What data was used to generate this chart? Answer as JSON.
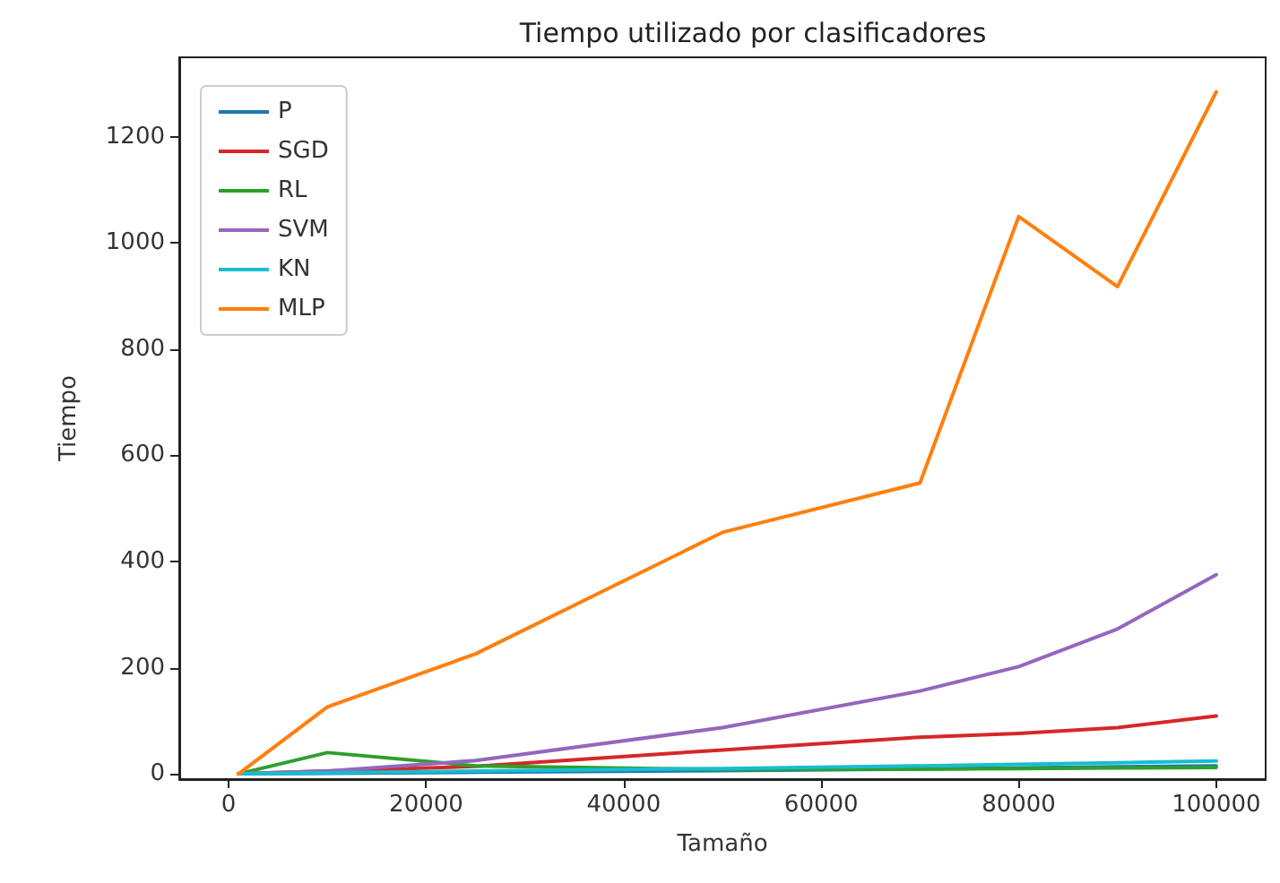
{
  "chart_data": {
    "type": "line",
    "title": "Tiempo utilizado por clasificadores",
    "xlabel": "Tamaño",
    "ylabel": "Tiempo",
    "x": [
      1000,
      10000,
      25000,
      50000,
      70000,
      80000,
      90000,
      100000
    ],
    "series": [
      {
        "name": "P",
        "color": "#1f77b4",
        "values": [
          0,
          1,
          3,
          6,
          9,
          11,
          13,
          15
        ]
      },
      {
        "name": "SGD",
        "color": "#d62728",
        "values": [
          0,
          5,
          14,
          45,
          69,
          76,
          87,
          109
        ]
      },
      {
        "name": "RL",
        "color": "#2ca02c",
        "values": [
          0,
          40,
          15,
          8,
          9,
          10,
          11,
          12
        ]
      },
      {
        "name": "SVM",
        "color": "#9467bd",
        "values": [
          0,
          5,
          25,
          87,
          156,
          202,
          273,
          375
        ]
      },
      {
        "name": "KN",
        "color": "#17becf",
        "values": [
          0,
          2,
          5,
          10,
          15,
          18,
          21,
          24
        ]
      },
      {
        "name": "MLP",
        "color": "#ff7f0e",
        "values": [
          0,
          126,
          226,
          455,
          548,
          1050,
          918,
          1285
        ]
      }
    ],
    "xlim": [
      -5000,
      105000
    ],
    "xticks": [
      0,
      20000,
      40000,
      60000,
      80000,
      100000
    ],
    "ylim": [
      -10,
      1350
    ],
    "yticks": [
      0,
      200,
      400,
      600,
      800,
      1000,
      1200
    ],
    "grid": false,
    "legend": "top left",
    "marker": "none",
    "line_style": "solid"
  }
}
